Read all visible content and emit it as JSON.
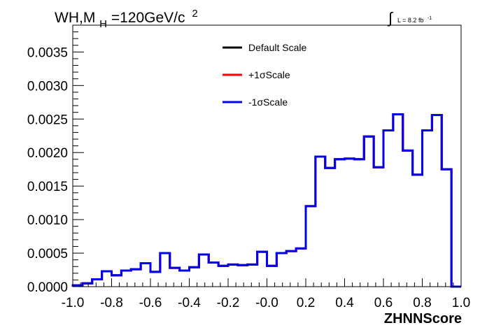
{
  "chart_data": {
    "type": "line",
    "step": true,
    "title": {
      "main": "WH,M",
      "sub": "H",
      "rest": "=120GeV/c",
      "sup": "2"
    },
    "lumi": {
      "symbol": "∫",
      "text": "L = 8.2 fb",
      "sup": "-1"
    },
    "xlabel": "ZHNNScore",
    "ylabel": "",
    "xlim": [
      -1.0,
      1.0
    ],
    "ylim": [
      0.0,
      0.0039
    ],
    "x_ticks": [
      "-1.0",
      "-0.8",
      "-0.6",
      "-0.4",
      "-0.2",
      "-0.0",
      "0.2",
      "0.4",
      "0.6",
      "0.8",
      "1.0"
    ],
    "y_ticks": [
      "0.0000",
      "0.0005",
      "0.0010",
      "0.0015",
      "0.0020",
      "0.0025",
      "0.0030",
      "0.0035"
    ],
    "bin_edges": [
      -1.0,
      -0.95,
      -0.9,
      -0.85,
      -0.8,
      -0.75,
      -0.7,
      -0.65,
      -0.6,
      -0.55,
      -0.5,
      -0.45,
      -0.4,
      -0.35,
      -0.3,
      -0.25,
      -0.2,
      -0.15,
      -0.1,
      -0.05,
      0.0,
      0.05,
      0.1,
      0.15,
      0.2,
      0.25,
      0.3,
      0.35,
      0.4,
      0.45,
      0.5,
      0.55,
      0.6,
      0.65,
      0.7,
      0.75,
      0.8,
      0.85,
      0.9,
      0.95,
      1.0
    ],
    "series": [
      {
        "name": "Default Scale",
        "color": "#000000",
        "values": [
          2e-05,
          5e-05,
          0.00011,
          0.00023,
          0.00017,
          0.00024,
          0.00026,
          0.00035,
          0.00022,
          0.0005,
          0.00028,
          0.00024,
          0.00029,
          0.00048,
          0.00036,
          0.00031,
          0.00033,
          0.00032,
          0.00033,
          0.00052,
          0.00031,
          0.0005,
          0.00053,
          0.00057,
          0.0012,
          0.00194,
          0.00177,
          0.0019,
          0.00191,
          0.0019,
          0.00224,
          0.00178,
          0.00233,
          0.00257,
          0.00203,
          0.00167,
          0.00233,
          0.00256,
          0.00175,
          0.0
        ]
      },
      {
        "name": "+1σScale",
        "color": "#ff0000",
        "values": [
          2e-05,
          5e-05,
          0.00011,
          0.00023,
          0.00017,
          0.00024,
          0.00026,
          0.00035,
          0.00022,
          0.0005,
          0.00028,
          0.00024,
          0.00029,
          0.00048,
          0.00036,
          0.00031,
          0.00033,
          0.00032,
          0.00033,
          0.00052,
          0.00031,
          0.0005,
          0.00053,
          0.00057,
          0.0012,
          0.00194,
          0.00177,
          0.0019,
          0.00191,
          0.0019,
          0.00224,
          0.00178,
          0.00233,
          0.00257,
          0.00203,
          0.00167,
          0.00233,
          0.00256,
          0.00175,
          0.0
        ]
      },
      {
        "name": "-1σScale",
        "color": "#0000ee",
        "values": [
          2e-05,
          5e-05,
          0.00011,
          0.00023,
          0.00017,
          0.00024,
          0.00026,
          0.00035,
          0.00022,
          0.0005,
          0.00028,
          0.00024,
          0.00029,
          0.00048,
          0.00036,
          0.00031,
          0.00033,
          0.00032,
          0.00033,
          0.00052,
          0.00031,
          0.0005,
          0.00053,
          0.00057,
          0.0012,
          0.00194,
          0.00177,
          0.0019,
          0.00191,
          0.0019,
          0.00224,
          0.00178,
          0.00233,
          0.00257,
          0.00203,
          0.00167,
          0.00233,
          0.00256,
          0.00175,
          0.0
        ]
      }
    ],
    "legend_position": "top-center",
    "grid": false
  }
}
